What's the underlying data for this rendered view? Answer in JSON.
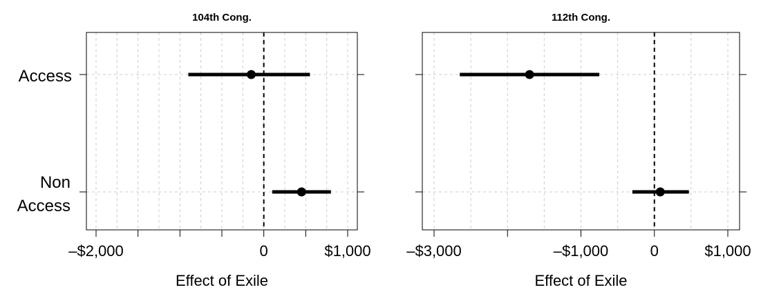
{
  "chart_data": [
    {
      "type": "forest",
      "title": "104th Cong.",
      "xlabel": "Effect of Exile",
      "xlim": [
        -2000,
        1000
      ],
      "xticks": [
        -2000,
        -1500,
        -1000,
        -500,
        0,
        500,
        1000
      ],
      "xtick_labels": [
        "–$2,000",
        "",
        "",
        "",
        "0",
        "",
        "$1,000"
      ],
      "grid": true,
      "reference_line": 0,
      "categories": [
        "Access",
        "Non Access"
      ],
      "estimates": [
        {
          "category": "Access",
          "value": -150,
          "low": -900,
          "high": 550
        },
        {
          "category": "Non Access",
          "value": 450,
          "low": 100,
          "high": 800
        }
      ]
    },
    {
      "type": "forest",
      "title": "112th Cong.",
      "xlabel": "Effect of Exile",
      "xlim": [
        -3000,
        1000
      ],
      "xticks": [
        -3000,
        -2000,
        -1000,
        0,
        1000
      ],
      "xtick_labels": [
        "–$3,000",
        "",
        "–$1,000",
        "0",
        "$1,000"
      ],
      "grid": true,
      "reference_line": 0,
      "categories": [
        "Access",
        "Non Access"
      ],
      "estimates": [
        {
          "category": "Access",
          "value": -1700,
          "low": -2650,
          "high": -750
        },
        {
          "category": "Non Access",
          "value": 80,
          "low": -300,
          "high": 470
        }
      ]
    }
  ],
  "y_labels": {
    "access": "Access",
    "non_access_line1": "Non",
    "non_access_line2": "Access"
  }
}
